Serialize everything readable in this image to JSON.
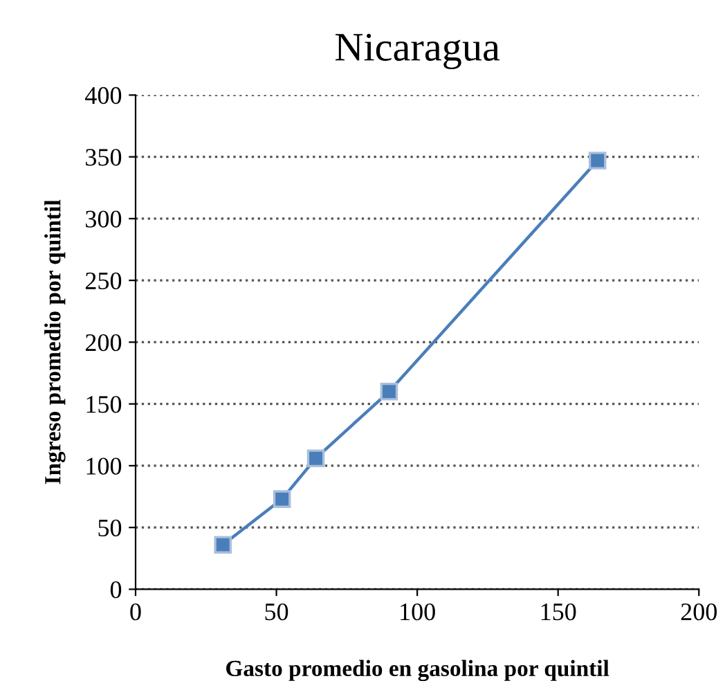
{
  "chart_data": {
    "type": "line",
    "title": "Nicaragua",
    "xlabel": "Gasto promedio en gasolina por quintil",
    "ylabel": "Ingreso promedio por quintil",
    "x": [
      31,
      52,
      64,
      90,
      164
    ],
    "series": [
      {
        "color": "#4a7ebb",
        "values": [
          36,
          73,
          106,
          160,
          347
        ]
      }
    ],
    "xlim": [
      0,
      200
    ],
    "xticks": [
      0,
      50,
      100,
      150,
      200
    ],
    "ylim": [
      0,
      400
    ],
    "yticks": [
      0,
      50,
      100,
      150,
      200,
      250,
      300,
      350,
      400
    ],
    "grid": "y",
    "marker": "square",
    "line_style": "solid",
    "legend": false
  }
}
